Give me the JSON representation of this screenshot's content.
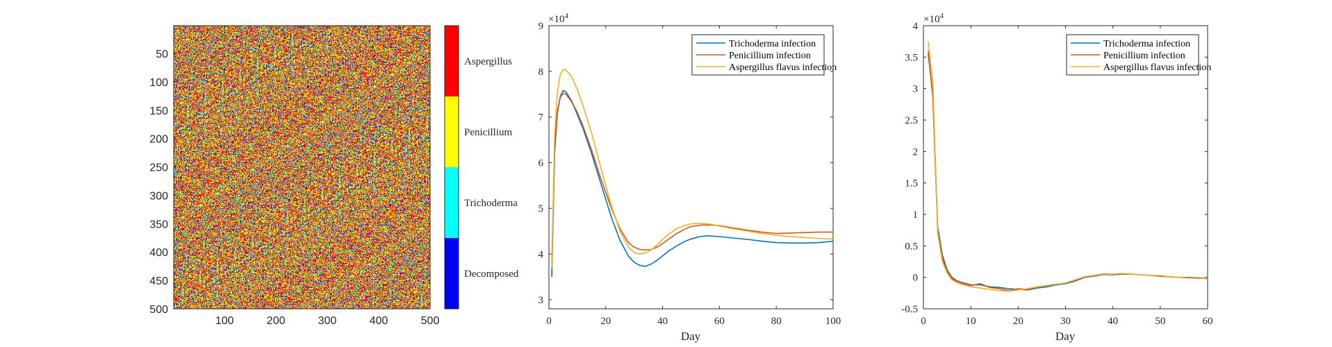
{
  "chart_data": [
    {
      "type": "heatmap",
      "title": "",
      "xlabel": "",
      "ylabel": "",
      "xlim": [
        1,
        500
      ],
      "ylim": [
        1,
        500
      ],
      "y_reversed": true,
      "x_ticks": [
        100,
        200,
        300,
        400,
        500
      ],
      "y_ticks": [
        50,
        100,
        150,
        200,
        250,
        300,
        350,
        400,
        450,
        500
      ],
      "grid_size": 500,
      "category_proportions": [
        0.12,
        0.14,
        0.37,
        0.37
      ],
      "colorbar": {
        "labels": [
          "Decomposed",
          "Trichoderma",
          "Penicillium",
          "Aspergillus"
        ],
        "colors": [
          "#0000ff",
          "#00ffff",
          "#ffff00",
          "#ff0000"
        ]
      }
    },
    {
      "type": "line",
      "title": "",
      "xlabel": "Day",
      "ylabel": "",
      "xlim": [
        0,
        100
      ],
      "ylim": [
        28000,
        90000
      ],
      "x_ticks": [
        0,
        20,
        40,
        60,
        80,
        100
      ],
      "y_ticks": [
        30000,
        40000,
        50000,
        60000,
        70000,
        80000,
        90000
      ],
      "y_tick_labels": [
        "3",
        "4",
        "5",
        "6",
        "7",
        "8",
        "9"
      ],
      "y_exponent_label": "×10",
      "y_exponent_power": "4",
      "legend_position": "top-right",
      "series": [
        {
          "name": "Trichoderma infection",
          "color": "#0072bd",
          "x": [
            1,
            2,
            3,
            4,
            5,
            6,
            8,
            10,
            12,
            15,
            18,
            20,
            22,
            25,
            28,
            30,
            32,
            34,
            36,
            38,
            40,
            42,
            45,
            48,
            50,
            53,
            56,
            58,
            60,
            65,
            70,
            75,
            80,
            85,
            90,
            95,
            100
          ],
          "y": [
            35000,
            62000,
            71000,
            74500,
            75800,
            75500,
            73500,
            70500,
            67500,
            62000,
            56000,
            52000,
            48000,
            43000,
            39500,
            38200,
            37500,
            37300,
            37800,
            38600,
            39600,
            40600,
            41800,
            42800,
            43300,
            43800,
            44000,
            43900,
            43800,
            43500,
            43200,
            42800,
            42500,
            42400,
            42400,
            42500,
            42800
          ]
        },
        {
          "name": "Penicillium infection",
          "color": "#d95319",
          "x": [
            1,
            2,
            3,
            4,
            5,
            6,
            8,
            10,
            12,
            15,
            18,
            20,
            22,
            25,
            28,
            30,
            32,
            34,
            36,
            38,
            40,
            42,
            45,
            48,
            50,
            53,
            56,
            58,
            60,
            65,
            70,
            75,
            80,
            85,
            90,
            95,
            100
          ],
          "y": [
            38000,
            63000,
            71500,
            74300,
            75200,
            75000,
            73300,
            71000,
            68000,
            62800,
            57000,
            53500,
            50000,
            45500,
            42500,
            41500,
            41000,
            40900,
            41000,
            41500,
            42300,
            43200,
            44500,
            45500,
            46000,
            46300,
            46400,
            46300,
            46200,
            45700,
            45200,
            44800,
            44500,
            44600,
            44700,
            44800,
            44800
          ]
        },
        {
          "name": "Aspergillus flavus infection",
          "color": "#edb120",
          "x": [
            1,
            2,
            3,
            4,
            5,
            6,
            8,
            10,
            12,
            15,
            18,
            20,
            22,
            25,
            28,
            30,
            32,
            34,
            36,
            38,
            40,
            42,
            45,
            48,
            50,
            53,
            56,
            58,
            60,
            65,
            70,
            75,
            80,
            85,
            90,
            95,
            100
          ],
          "y": [
            37000,
            66000,
            75500,
            79300,
            80400,
            80300,
            78800,
            76000,
            72500,
            66500,
            59500,
            55000,
            50500,
            45000,
            41500,
            40300,
            40000,
            40200,
            40900,
            42000,
            43200,
            44300,
            45600,
            46300,
            46600,
            46700,
            46600,
            46400,
            46100,
            45500,
            45000,
            44500,
            44100,
            43800,
            43600,
            43400,
            43300
          ]
        }
      ]
    },
    {
      "type": "line",
      "title": "",
      "xlabel": "Day",
      "ylabel": "",
      "xlim": [
        0,
        60
      ],
      "ylim": [
        -5000,
        40000
      ],
      "x_ticks": [
        0,
        10,
        20,
        30,
        40,
        50,
        60
      ],
      "y_ticks": [
        -5000,
        0,
        5000,
        10000,
        15000,
        20000,
        25000,
        30000,
        35000,
        40000
      ],
      "y_tick_labels": [
        "-0.5",
        "0",
        "0.5",
        "1",
        "1.5",
        "2",
        "2.5",
        "3",
        "3.5",
        "4"
      ],
      "y_exponent_label": "×10",
      "y_exponent_power": "4",
      "legend_position": "top-right",
      "series": [
        {
          "name": "Trichoderma infection",
          "color": "#0072bd",
          "x": [
            1,
            2,
            3,
            4,
            5,
            6,
            7,
            8,
            9,
            10,
            12,
            14,
            16,
            18,
            20,
            22,
            24,
            26,
            28,
            30,
            32,
            34,
            36,
            38,
            40,
            42,
            44,
            46,
            48,
            50,
            52,
            54,
            56,
            58,
            60
          ],
          "y": [
            35500,
            29000,
            8000,
            3500,
            1200,
            0,
            -500,
            -800,
            -1000,
            -1200,
            -1200,
            -1500,
            -1600,
            -1800,
            -1900,
            -2000,
            -1700,
            -1500,
            -1200,
            -1000,
            -600,
            0,
            200,
            400,
            400,
            500,
            500,
            400,
            300,
            200,
            100,
            0,
            0,
            -100,
            -200
          ]
        },
        {
          "name": "Penicillium infection",
          "color": "#d95319",
          "x": [
            1,
            2,
            3,
            4,
            5,
            6,
            7,
            8,
            9,
            10,
            12,
            14,
            16,
            18,
            20,
            22,
            24,
            26,
            28,
            30,
            32,
            34,
            36,
            38,
            40,
            42,
            44,
            46,
            48,
            50,
            52,
            54,
            56,
            58,
            60
          ],
          "y": [
            36000,
            28500,
            7500,
            3000,
            1000,
            -200,
            -600,
            -900,
            -1100,
            -1300,
            -1000,
            -1600,
            -1800,
            -2100,
            -1800,
            -1900,
            -1600,
            -1300,
            -1100,
            -900,
            -500,
            100,
            300,
            500,
            500,
            600,
            500,
            400,
            300,
            200,
            100,
            0,
            -100,
            -100,
            -100
          ]
        },
        {
          "name": "Aspergillus flavus infection",
          "color": "#edb120",
          "x": [
            1,
            2,
            3,
            4,
            5,
            6,
            7,
            8,
            9,
            10,
            12,
            14,
            16,
            18,
            20,
            22,
            24,
            26,
            28,
            30,
            32,
            34,
            36,
            38,
            40,
            42,
            44,
            46,
            48,
            50,
            52,
            54,
            56,
            58,
            60
          ],
          "y": [
            37500,
            31000,
            7000,
            2500,
            700,
            -400,
            -800,
            -1100,
            -1300,
            -1500,
            -1700,
            -1900,
            -2100,
            -2200,
            -2000,
            -1800,
            -1500,
            -1300,
            -1100,
            -900,
            -400,
            100,
            300,
            400,
            500,
            600,
            500,
            400,
            300,
            300,
            100,
            0,
            -100,
            -200,
            -100
          ]
        }
      ]
    }
  ]
}
